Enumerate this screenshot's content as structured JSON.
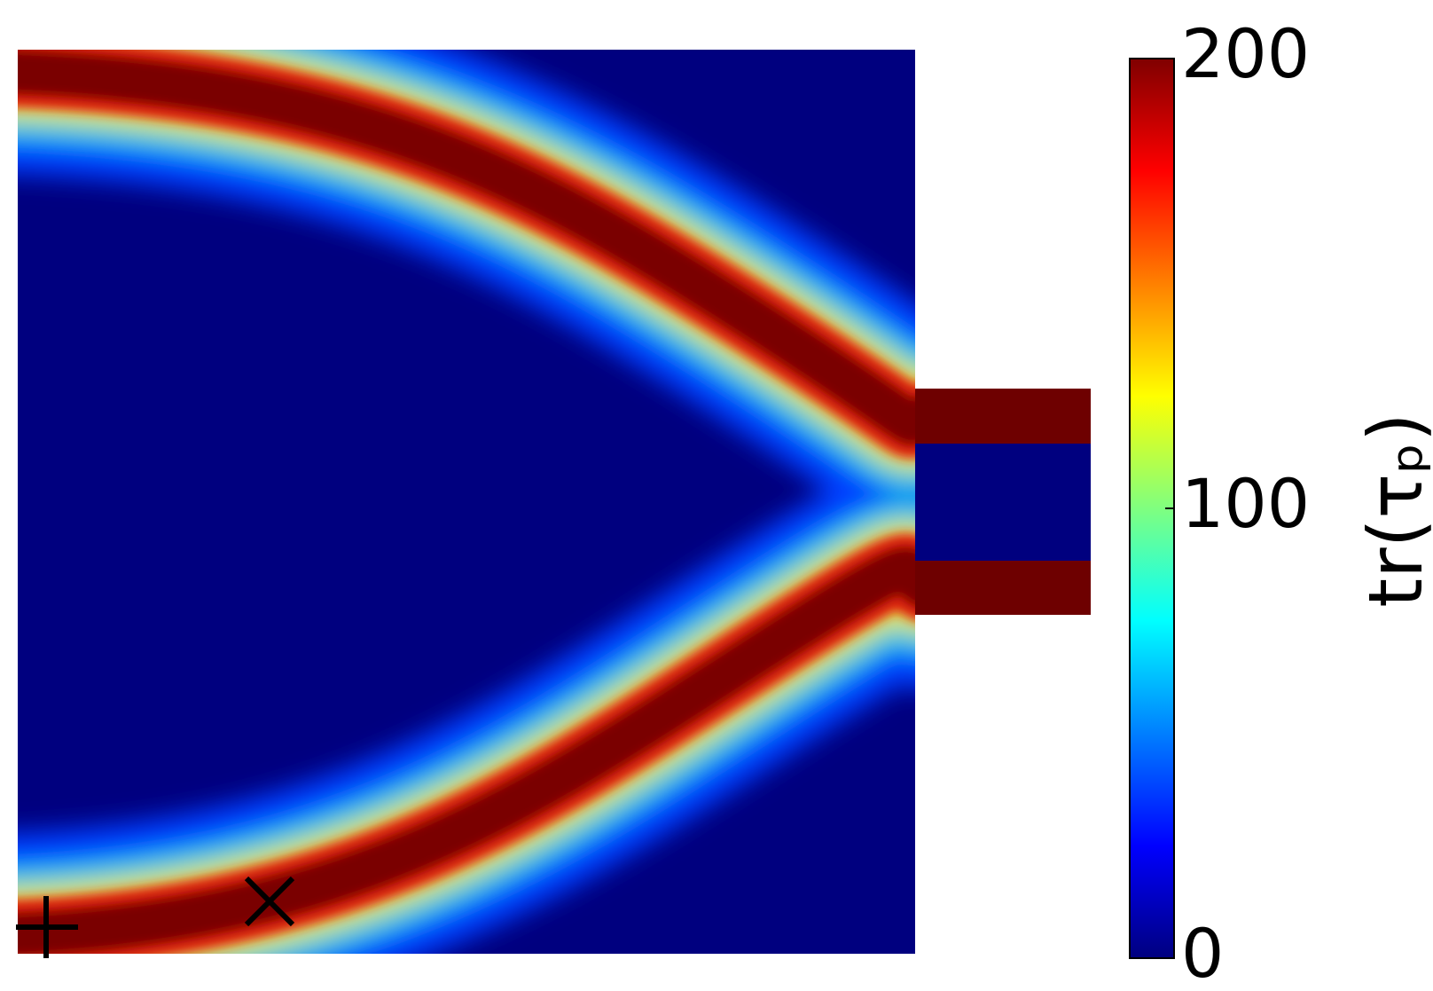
{
  "chart_data": {
    "type": "contour",
    "colormap": "jet",
    "clim": [
      0,
      200
    ],
    "cticks": [
      0,
      100,
      200
    ],
    "colorbar_label": "tr(τₚ)"
  }
}
